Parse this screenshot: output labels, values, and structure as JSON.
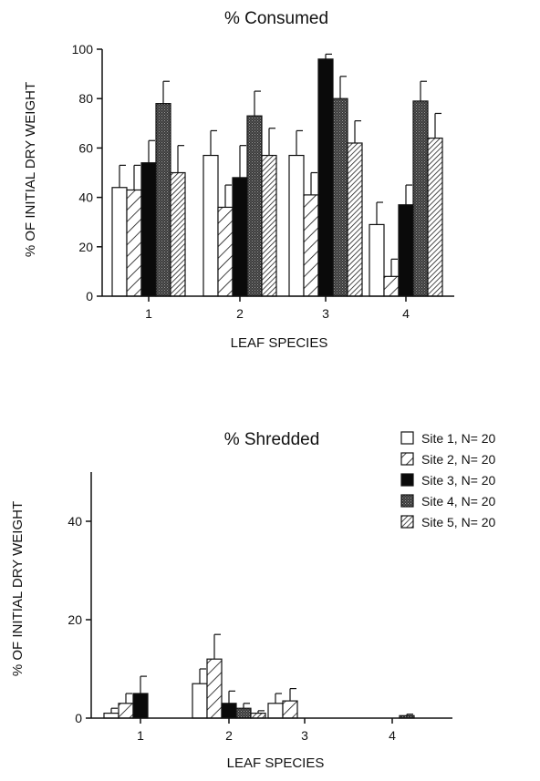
{
  "chart_data": [
    {
      "type": "bar",
      "title": "% Consumed",
      "xlabel": "LEAF SPECIES",
      "ylabel": "% OF INITIAL DRY WEIGHT",
      "ylim": [
        0,
        100
      ],
      "yticks": [
        "0",
        "20",
        "40",
        "60",
        "80",
        "100"
      ],
      "categories": [
        "1",
        "2",
        "3",
        "4"
      ],
      "error_bars": true,
      "series": [
        {
          "name": "Site 1, N= 20",
          "values": [
            44,
            57,
            57,
            29
          ],
          "errors": [
            9,
            10,
            10,
            9
          ]
        },
        {
          "name": "Site 2, N= 20",
          "values": [
            43,
            36,
            41,
            8
          ],
          "errors": [
            10,
            9,
            9,
            7
          ]
        },
        {
          "name": "Site 3, N= 20",
          "values": [
            54,
            48,
            96,
            37
          ],
          "errors": [
            9,
            13,
            2,
            8
          ]
        },
        {
          "name": "Site 4, N= 20",
          "values": [
            78,
            73,
            80,
            79
          ],
          "errors": [
            9,
            10,
            9,
            8
          ]
        },
        {
          "name": "Site 5, N= 20",
          "values": [
            50,
            57,
            62,
            64
          ],
          "errors": [
            11,
            11,
            9,
            10
          ]
        }
      ]
    },
    {
      "type": "bar",
      "title": "% Shredded",
      "xlabel": "LEAF SPECIES",
      "ylabel": "% OF INITIAL DRY WEIGHT",
      "ylim": [
        0,
        50
      ],
      "yticks": [
        "0",
        "20",
        "40"
      ],
      "categories": [
        "1",
        "2",
        "3",
        "4"
      ],
      "error_bars": true,
      "legend": "top-right",
      "series": [
        {
          "name": "Site 1, N= 20",
          "values": [
            1,
            7,
            3,
            0
          ],
          "errors": [
            1,
            3,
            2,
            0
          ]
        },
        {
          "name": "Site 2, N= 20",
          "values": [
            3,
            12,
            3.5,
            0
          ],
          "errors": [
            2,
            5,
            2.5,
            0
          ]
        },
        {
          "name": "Site 3, N= 20",
          "values": [
            5,
            3,
            0,
            0
          ],
          "errors": [
            3.5,
            2.5,
            0,
            0
          ]
        },
        {
          "name": "Site 4, N= 20",
          "values": [
            0,
            2,
            0,
            0.5
          ],
          "errors": [
            0,
            1,
            0,
            0.3
          ]
        },
        {
          "name": "Site 5, N= 20",
          "values": [
            0,
            1,
            0,
            0
          ],
          "errors": [
            0,
            0.5,
            0,
            0
          ]
        }
      ]
    }
  ]
}
